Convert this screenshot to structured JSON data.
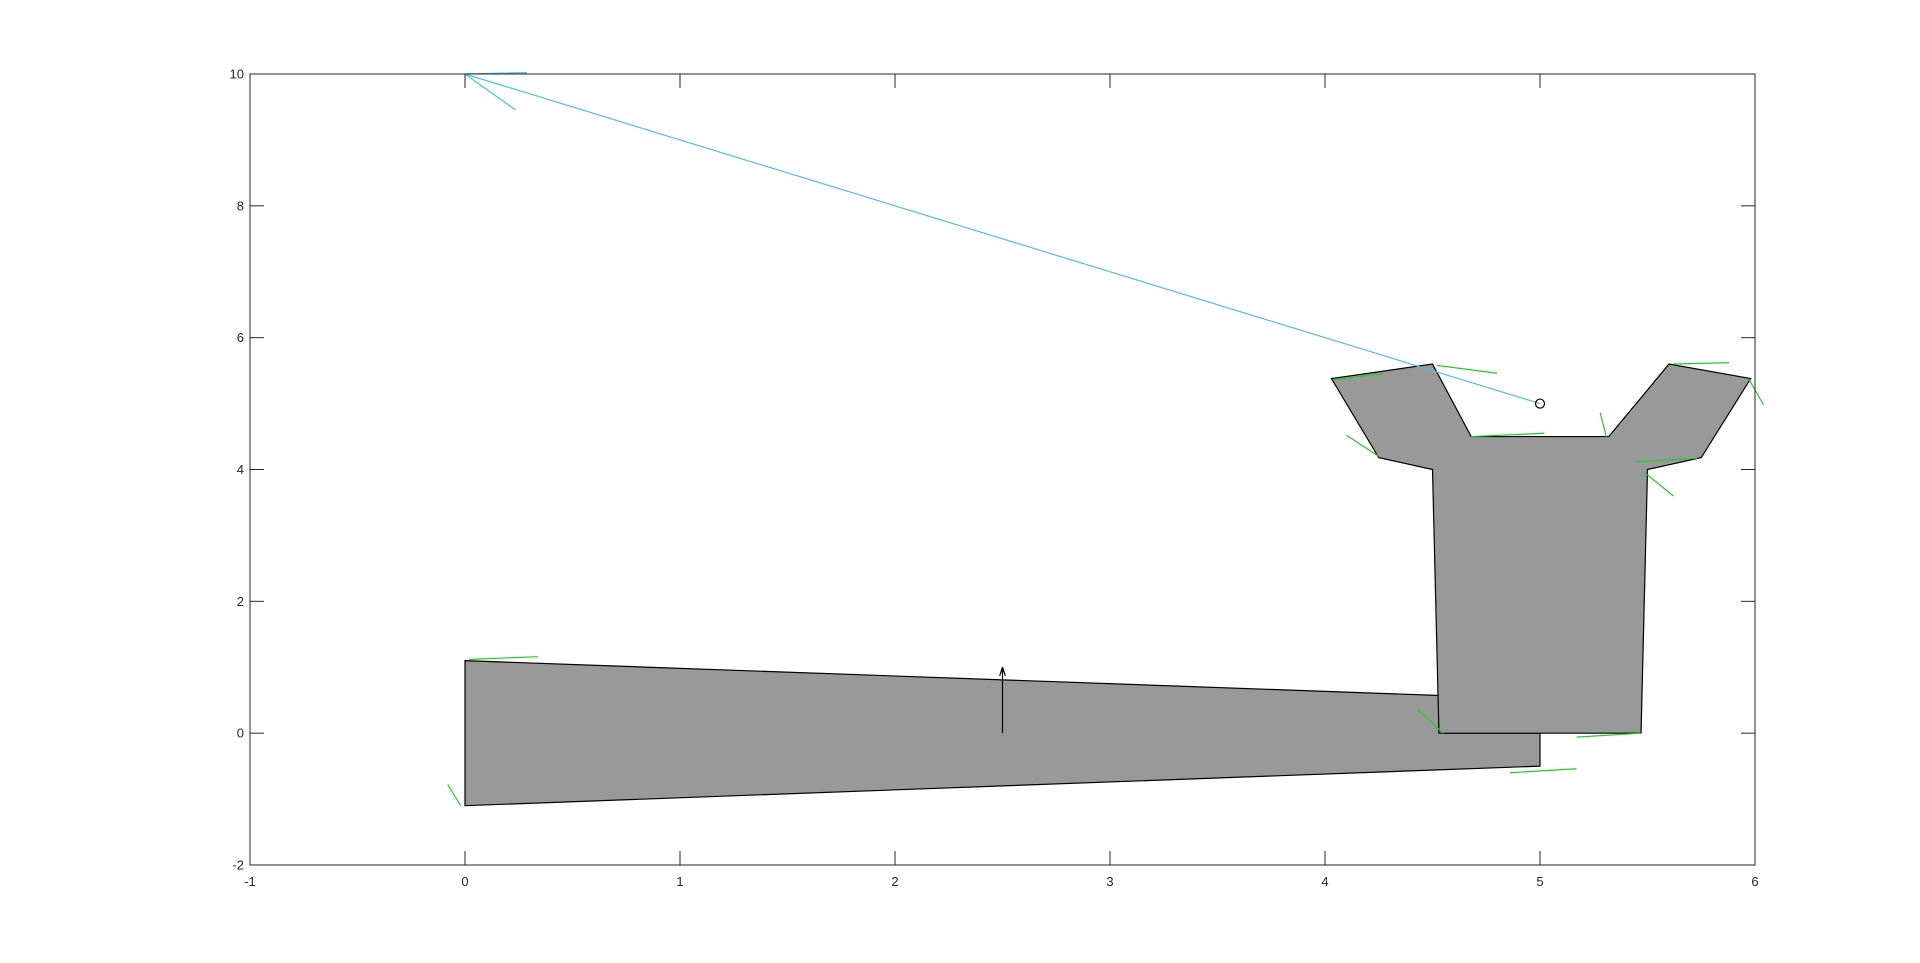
{
  "chart_data": {
    "type": "line",
    "title": "",
    "xlabel": "",
    "ylabel": "",
    "xlim": [
      -1,
      6
    ],
    "ylim": [
      -2,
      10
    ],
    "grid": false,
    "legend": "none",
    "xticks": [
      -1,
      0,
      1,
      2,
      3,
      4,
      5,
      6
    ],
    "yticks": [
      -2,
      0,
      2,
      4,
      6,
      8,
      10
    ],
    "xtick_labels": [
      "-1",
      "0",
      "1",
      "2",
      "3",
      "4",
      "5",
      "6"
    ],
    "ytick_labels": [
      "-2",
      "0",
      "2",
      "4",
      "6",
      "8",
      "10"
    ],
    "polygons": [
      {
        "name": "",
        "fill": "#999999",
        "edge": "#000000",
        "points": [
          [
            0,
            1.1
          ],
          [
            4.55,
            0.57
          ],
          [
            4.55,
            0
          ],
          [
            5,
            0
          ],
          [
            5,
            -0.5
          ],
          [
            0,
            -1.1
          ]
        ]
      },
      {
        "name": "",
        "fill": "#999999",
        "edge": "#000000",
        "points": [
          [
            4.53,
            0
          ],
          [
            5.47,
            0
          ],
          [
            5.5,
            4
          ],
          [
            5.75,
            4.18
          ],
          [
            5.98,
            5.38
          ],
          [
            5.6,
            5.6
          ],
          [
            5.32,
            4.5
          ],
          [
            4.68,
            4.5
          ],
          [
            4.5,
            5.6
          ],
          [
            4.03,
            5.38
          ],
          [
            4.25,
            4.18
          ],
          [
            4.5,
            4
          ]
        ]
      }
    ],
    "green_normals": [
      [
        [
          0.02,
          1.12
        ],
        [
          0.34,
          1.16
        ]
      ],
      [
        [
          -0.02,
          -1.1
        ],
        [
          -0.08,
          -0.78
        ]
      ],
      [
        [
          4.55,
          0
        ],
        [
          4.43,
          0.37
        ]
      ],
      [
        [
          5.17,
          -0.54
        ],
        [
          4.86,
          -0.6
        ]
      ],
      [
        [
          5.47,
          0
        ],
        [
          5.17,
          -0.06
        ]
      ],
      [
        [
          5.48,
          3.97
        ],
        [
          5.62,
          3.6
        ]
      ],
      [
        [
          5.73,
          4.17
        ],
        [
          5.45,
          4.12
        ]
      ],
      [
        [
          5.97,
          5.38
        ],
        [
          6.04,
          4.98
        ]
      ],
      [
        [
          5.62,
          5.6
        ],
        [
          5.88,
          5.62
        ]
      ],
      [
        [
          5.31,
          4.48
        ],
        [
          5.28,
          4.86
        ]
      ],
      [
        [
          4.68,
          4.5
        ],
        [
          5.02,
          4.55
        ]
      ],
      [
        [
          4.52,
          5.58
        ],
        [
          4.8,
          5.46
        ]
      ],
      [
        [
          4.04,
          5.36
        ],
        [
          4.27,
          5.46
        ]
      ],
      [
        [
          4.25,
          4.2
        ],
        [
          4.1,
          4.52
        ]
      ]
    ],
    "black_arrow": {
      "from": [
        2.5,
        0
      ],
      "to": [
        2.5,
        1.0
      ]
    },
    "blue_arrow": {
      "from": [
        5,
        5
      ],
      "to": [
        0,
        10
      ],
      "color": "#4DBEEE"
    },
    "marker": {
      "x": 5,
      "y": 5,
      "shape": "circle"
    }
  }
}
